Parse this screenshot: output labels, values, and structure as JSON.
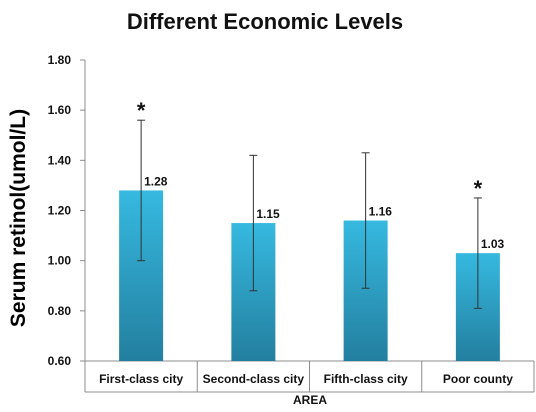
{
  "chart_data": {
    "type": "bar",
    "title": "Different Economic Levels",
    "xlabel": "AREA",
    "ylabel": "Serum retinol(umol/L)",
    "categories": [
      "First-class city",
      "Second-class city",
      "Fifth-class city",
      "Poor county"
    ],
    "values": [
      1.28,
      1.15,
      1.16,
      1.03
    ],
    "value_labels": [
      "1.28",
      "1.15",
      "1.16",
      "1.03"
    ],
    "error_bars": [
      {
        "low": 1.0,
        "high": 1.56
      },
      {
        "low": 0.88,
        "high": 1.42
      },
      {
        "low": 0.89,
        "high": 1.43
      },
      {
        "low": 0.81,
        "high": 1.25
      }
    ],
    "significance": [
      "*",
      "",
      "",
      "*"
    ],
    "ylim": [
      0.6,
      1.8
    ],
    "yticks": [
      0.6,
      0.8,
      1.0,
      1.2,
      1.4,
      1.6,
      1.8
    ],
    "ytick_labels": [
      "0.60",
      "0.80",
      "1.00",
      "1.20",
      "1.40",
      "1.60",
      "1.80"
    ],
    "grid": false,
    "legend": "none",
    "colors": {
      "bar_top": "#36b9e0",
      "bar_bottom": "#237f9f",
      "axis": "#8c8c8c",
      "error_bar": "#333333"
    }
  }
}
